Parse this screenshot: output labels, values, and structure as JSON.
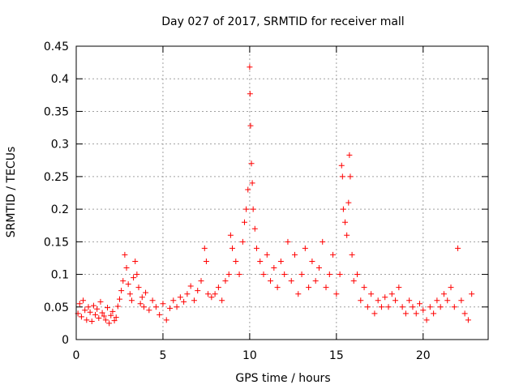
{
  "chart_data": {
    "type": "scatter",
    "title": "Day 027 of 2017, SRMTID for receiver mall",
    "xlabel": "GPS time / hours",
    "ylabel": "SRMTID / TECUs",
    "xlim": [
      0,
      23.75
    ],
    "ylim": [
      0,
      0.45
    ],
    "xticks": [
      0,
      5,
      10,
      15,
      20
    ],
    "yticks": [
      0,
      0.05,
      0.1,
      0.15,
      0.2,
      0.25,
      0.3,
      0.35,
      0.4,
      0.45
    ],
    "xtick_labels": [
      "0",
      "5",
      "10",
      "15",
      "20"
    ],
    "ytick_labels": [
      "0",
      "0.05",
      "0.1",
      "0.15",
      "0.2",
      "0.25",
      "0.3",
      "0.35",
      "0.4",
      "0.45"
    ],
    "grid": true,
    "marker": "+",
    "color": "#ff0000",
    "series": [
      {
        "name": "SRMTID",
        "points": [
          [
            0.1,
            0.04
          ],
          [
            0.2,
            0.055
          ],
          [
            0.3,
            0.035
          ],
          [
            0.4,
            0.06
          ],
          [
            0.5,
            0.045
          ],
          [
            0.6,
            0.03
          ],
          [
            0.7,
            0.05
          ],
          [
            0.8,
            0.042
          ],
          [
            0.9,
            0.028
          ],
          [
            1.0,
            0.052
          ],
          [
            1.1,
            0.038
          ],
          [
            1.2,
            0.047
          ],
          [
            1.3,
            0.033
          ],
          [
            1.4,
            0.058
          ],
          [
            1.5,
            0.041
          ],
          [
            1.6,
            0.036
          ],
          [
            1.7,
            0.03
          ],
          [
            1.8,
            0.049
          ],
          [
            1.9,
            0.025
          ],
          [
            2.0,
            0.037
          ],
          [
            2.1,
            0.043
          ],
          [
            2.2,
            0.029
          ],
          [
            2.3,
            0.034
          ],
          [
            2.4,
            0.051
          ],
          [
            2.5,
            0.062
          ],
          [
            2.6,
            0.075
          ],
          [
            2.7,
            0.09
          ],
          [
            2.8,
            0.13
          ],
          [
            2.9,
            0.11
          ],
          [
            3.0,
            0.085
          ],
          [
            3.1,
            0.07
          ],
          [
            3.2,
            0.06
          ],
          [
            3.3,
            0.095
          ],
          [
            3.4,
            0.12
          ],
          [
            3.5,
            0.1
          ],
          [
            3.6,
            0.08
          ],
          [
            3.7,
            0.055
          ],
          [
            3.8,
            0.065
          ],
          [
            3.9,
            0.05
          ],
          [
            4.0,
            0.072
          ],
          [
            4.2,
            0.045
          ],
          [
            4.4,
            0.06
          ],
          [
            4.6,
            0.05
          ],
          [
            4.8,
            0.038
          ],
          [
            5.0,
            0.055
          ],
          [
            5.2,
            0.03
          ],
          [
            5.4,
            0.048
          ],
          [
            5.6,
            0.06
          ],
          [
            5.8,
            0.05
          ],
          [
            6.0,
            0.065
          ],
          [
            6.2,
            0.058
          ],
          [
            6.4,
            0.07
          ],
          [
            6.6,
            0.082
          ],
          [
            6.8,
            0.06
          ],
          [
            7.0,
            0.075
          ],
          [
            7.2,
            0.09
          ],
          [
            7.4,
            0.14
          ],
          [
            7.5,
            0.12
          ],
          [
            7.6,
            0.07
          ],
          [
            7.8,
            0.065
          ],
          [
            8.0,
            0.07
          ],
          [
            8.2,
            0.08
          ],
          [
            8.4,
            0.06
          ],
          [
            8.6,
            0.09
          ],
          [
            8.8,
            0.1
          ],
          [
            8.9,
            0.16
          ],
          [
            9.0,
            0.14
          ],
          [
            9.2,
            0.12
          ],
          [
            9.4,
            0.1
          ],
          [
            9.6,
            0.15
          ],
          [
            9.7,
            0.18
          ],
          [
            9.8,
            0.2
          ],
          [
            9.9,
            0.23
          ],
          [
            10.0,
            0.418
          ],
          [
            10.02,
            0.377
          ],
          [
            10.05,
            0.328
          ],
          [
            10.1,
            0.27
          ],
          [
            10.15,
            0.24
          ],
          [
            10.2,
            0.2
          ],
          [
            10.3,
            0.17
          ],
          [
            10.4,
            0.14
          ],
          [
            10.6,
            0.12
          ],
          [
            10.8,
            0.1
          ],
          [
            11.0,
            0.13
          ],
          [
            11.2,
            0.09
          ],
          [
            11.4,
            0.11
          ],
          [
            11.6,
            0.08
          ],
          [
            11.8,
            0.12
          ],
          [
            12.0,
            0.1
          ],
          [
            12.2,
            0.15
          ],
          [
            12.4,
            0.09
          ],
          [
            12.6,
            0.13
          ],
          [
            12.8,
            0.07
          ],
          [
            13.0,
            0.1
          ],
          [
            13.2,
            0.14
          ],
          [
            13.4,
            0.08
          ],
          [
            13.6,
            0.12
          ],
          [
            13.8,
            0.09
          ],
          [
            14.0,
            0.11
          ],
          [
            14.2,
            0.15
          ],
          [
            14.4,
            0.08
          ],
          [
            14.6,
            0.1
          ],
          [
            14.8,
            0.13
          ],
          [
            15.0,
            0.07
          ],
          [
            15.2,
            0.1
          ],
          [
            15.3,
            0.267
          ],
          [
            15.35,
            0.25
          ],
          [
            15.4,
            0.2
          ],
          [
            15.5,
            0.18
          ],
          [
            15.6,
            0.16
          ],
          [
            15.7,
            0.21
          ],
          [
            15.75,
            0.283
          ],
          [
            15.8,
            0.25
          ],
          [
            15.9,
            0.13
          ],
          [
            16.0,
            0.09
          ],
          [
            16.2,
            0.1
          ],
          [
            16.4,
            0.06
          ],
          [
            16.6,
            0.08
          ],
          [
            16.8,
            0.05
          ],
          [
            17.0,
            0.07
          ],
          [
            17.2,
            0.04
          ],
          [
            17.4,
            0.06
          ],
          [
            17.6,
            0.05
          ],
          [
            17.8,
            0.065
          ],
          [
            18.0,
            0.05
          ],
          [
            18.2,
            0.07
          ],
          [
            18.4,
            0.06
          ],
          [
            18.6,
            0.08
          ],
          [
            18.8,
            0.05
          ],
          [
            19.0,
            0.04
          ],
          [
            19.2,
            0.06
          ],
          [
            19.4,
            0.05
          ],
          [
            19.6,
            0.04
          ],
          [
            19.8,
            0.055
          ],
          [
            20.0,
            0.045
          ],
          [
            20.2,
            0.03
          ],
          [
            20.4,
            0.05
          ],
          [
            20.6,
            0.04
          ],
          [
            20.8,
            0.06
          ],
          [
            21.0,
            0.05
          ],
          [
            21.2,
            0.07
          ],
          [
            21.4,
            0.06
          ],
          [
            21.6,
            0.08
          ],
          [
            21.8,
            0.05
          ],
          [
            22.0,
            0.14
          ],
          [
            22.2,
            0.06
          ],
          [
            22.4,
            0.04
          ],
          [
            22.6,
            0.03
          ],
          [
            22.8,
            0.07
          ]
        ]
      }
    ]
  }
}
